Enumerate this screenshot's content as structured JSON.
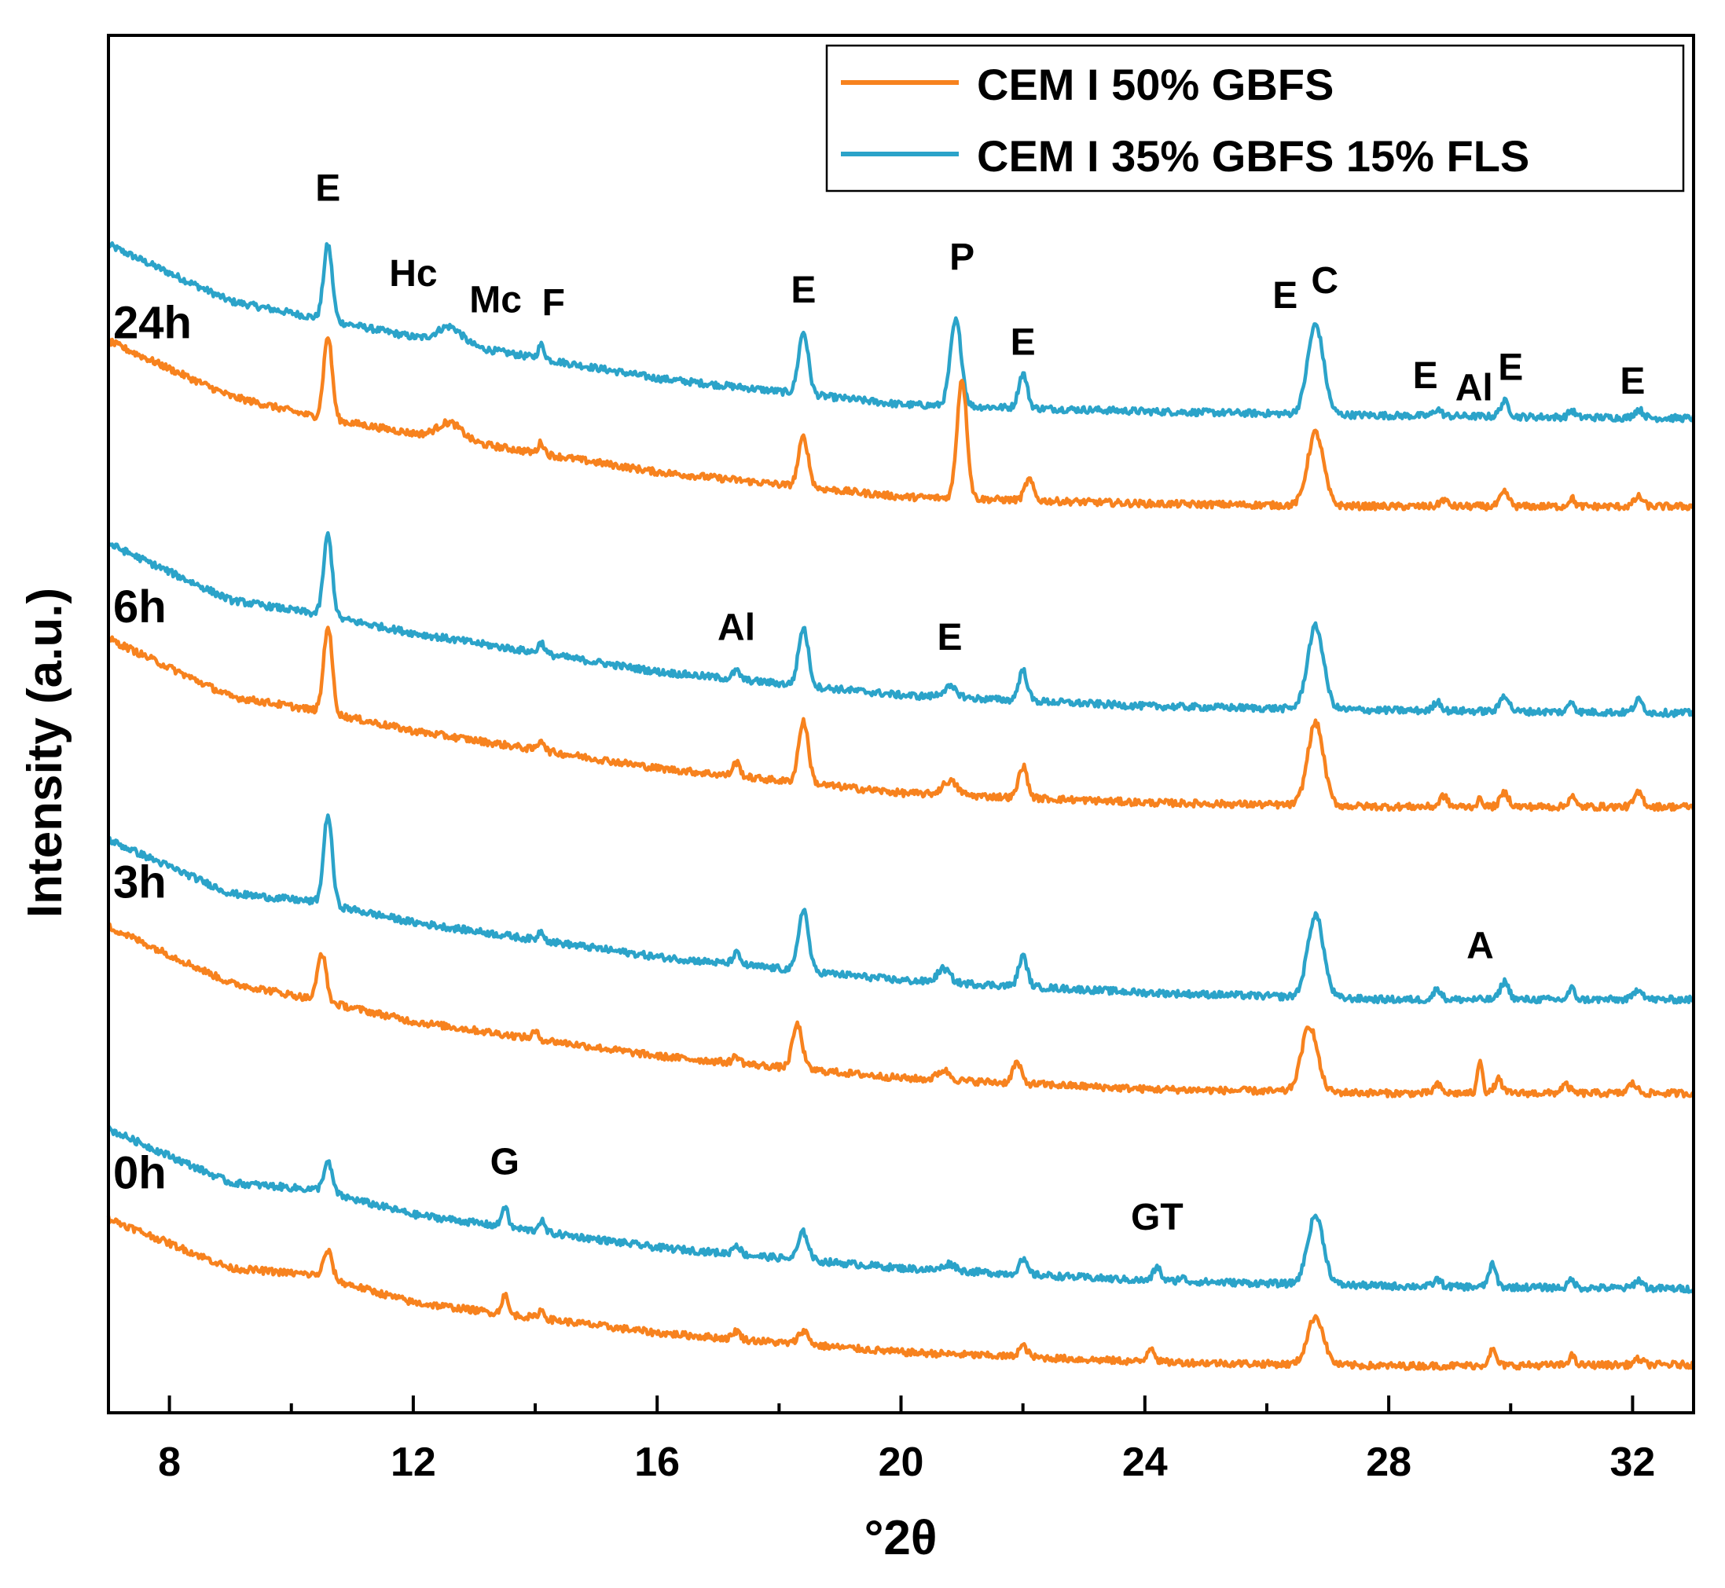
{
  "chart_data": {
    "type": "line",
    "title": "",
    "xlabel": "°2θ",
    "ylabel": "Intensity (a.u.)",
    "xlim": [
      7,
      33
    ],
    "ylim": [
      0,
      1
    ],
    "x_ticks": [
      8,
      12,
      16,
      20,
      24,
      28,
      32
    ],
    "x_tick_labels": [
      "8",
      "12",
      "16",
      "20",
      "24",
      "28",
      "32"
    ],
    "y_ticks_shown": false,
    "legend": {
      "placement": "top-right",
      "entries": [
        {
          "label": "CEM I 50% GBFS",
          "color": "#f7821e"
        },
        {
          "label": "CEM I 35% GBFS 15% FLS",
          "color": "#2ba3c9"
        }
      ]
    },
    "series_colors": {
      "orange": "#f7821e",
      "blue": "#2ba3c9"
    },
    "time_groups": [
      {
        "label": "24h",
        "anchor_y": 0.78
      },
      {
        "label": "6h",
        "anchor_y": 0.574
      },
      {
        "label": "3h",
        "anchor_y": 0.374
      },
      {
        "label": "0h",
        "anchor_y": 0.163
      }
    ],
    "series": [
      {
        "name": "CEM I 35% GBFS 15% FLS",
        "group": "24h",
        "baseline": [
          [
            7.0,
            0.848
          ],
          [
            9.0,
            0.807
          ],
          [
            10.4,
            0.795
          ],
          [
            12.0,
            0.781
          ],
          [
            16.0,
            0.751
          ],
          [
            20.0,
            0.732
          ],
          [
            24.0,
            0.727
          ],
          [
            28.0,
            0.724
          ],
          [
            33.0,
            0.722
          ]
        ],
        "peaks": [
          [
            10.6,
            0.055,
            0.07
          ],
          [
            12.6,
            0.012,
            0.2
          ],
          [
            14.1,
            0.01,
            0.05
          ],
          [
            18.4,
            0.045,
            0.08
          ],
          [
            20.9,
            0.062,
            0.09
          ],
          [
            22.0,
            0.025,
            0.07
          ],
          [
            26.8,
            0.065,
            0.13
          ],
          [
            28.8,
            0.005,
            0.06
          ],
          [
            29.9,
            0.011,
            0.07
          ],
          [
            31.0,
            0.005,
            0.05
          ],
          [
            32.1,
            0.006,
            0.07
          ]
        ]
      },
      {
        "name": "CEM I 50% GBFS",
        "group": "24h",
        "baseline": [
          [
            7.0,
            0.778
          ],
          [
            9.0,
            0.738
          ],
          [
            10.4,
            0.723
          ],
          [
            12.0,
            0.711
          ],
          [
            16.0,
            0.683
          ],
          [
            20.0,
            0.665
          ],
          [
            24.0,
            0.66
          ],
          [
            28.0,
            0.658
          ],
          [
            33.0,
            0.658
          ]
        ],
        "peaks": [
          [
            10.6,
            0.06,
            0.07
          ],
          [
            12.6,
            0.012,
            0.2
          ],
          [
            14.1,
            0.008,
            0.05
          ],
          [
            18.4,
            0.036,
            0.08
          ],
          [
            21.0,
            0.087,
            0.08
          ],
          [
            22.1,
            0.015,
            0.07
          ],
          [
            26.8,
            0.053,
            0.13
          ],
          [
            28.9,
            0.005,
            0.06
          ],
          [
            29.9,
            0.01,
            0.07
          ],
          [
            31.0,
            0.006,
            0.05
          ],
          [
            32.1,
            0.007,
            0.07
          ]
        ]
      },
      {
        "name": "CEM I 35% GBFS 15% FLS",
        "group": "6h",
        "baseline": [
          [
            7.0,
            0.631
          ],
          [
            9.0,
            0.59
          ],
          [
            10.4,
            0.58
          ],
          [
            12.0,
            0.566
          ],
          [
            16.0,
            0.538
          ],
          [
            20.0,
            0.521
          ],
          [
            24.0,
            0.513
          ],
          [
            28.0,
            0.51
          ],
          [
            33.0,
            0.508
          ]
        ],
        "peaks": [
          [
            10.6,
            0.059,
            0.07
          ],
          [
            14.1,
            0.008,
            0.05
          ],
          [
            17.3,
            0.006,
            0.06
          ],
          [
            18.4,
            0.042,
            0.08
          ],
          [
            20.8,
            0.007,
            0.12
          ],
          [
            22.0,
            0.022,
            0.07
          ],
          [
            26.8,
            0.06,
            0.13
          ],
          [
            28.8,
            0.007,
            0.06
          ],
          [
            29.9,
            0.012,
            0.07
          ],
          [
            31.0,
            0.008,
            0.05
          ],
          [
            32.1,
            0.009,
            0.07
          ]
        ]
      },
      {
        "name": "CEM I 50% GBFS",
        "group": "6h",
        "baseline": [
          [
            7.0,
            0.562
          ],
          [
            9.0,
            0.52
          ],
          [
            10.4,
            0.51
          ],
          [
            12.0,
            0.495
          ],
          [
            16.0,
            0.468
          ],
          [
            20.0,
            0.45
          ],
          [
            24.0,
            0.443
          ],
          [
            28.0,
            0.44
          ],
          [
            33.0,
            0.44
          ]
        ],
        "peaks": [
          [
            10.6,
            0.063,
            0.07
          ],
          [
            14.1,
            0.008,
            0.05
          ],
          [
            17.3,
            0.01,
            0.06
          ],
          [
            18.4,
            0.045,
            0.08
          ],
          [
            20.8,
            0.01,
            0.12
          ],
          [
            22.0,
            0.023,
            0.07
          ],
          [
            26.8,
            0.06,
            0.13
          ],
          [
            28.9,
            0.008,
            0.06
          ],
          [
            29.5,
            0.005,
            0.05
          ],
          [
            29.9,
            0.01,
            0.07
          ],
          [
            31.0,
            0.008,
            0.05
          ],
          [
            32.1,
            0.01,
            0.07
          ]
        ]
      },
      {
        "name": "CEM I 35% GBFS 15% FLS",
        "group": "3h",
        "baseline": [
          [
            7.0,
            0.416
          ],
          [
            9.0,
            0.377
          ],
          [
            10.4,
            0.371
          ],
          [
            12.0,
            0.356
          ],
          [
            16.0,
            0.331
          ],
          [
            20.0,
            0.314
          ],
          [
            24.0,
            0.305
          ],
          [
            28.0,
            0.3
          ],
          [
            33.0,
            0.3
          ]
        ],
        "peaks": [
          [
            10.6,
            0.065,
            0.07
          ],
          [
            14.1,
            0.007,
            0.05
          ],
          [
            17.3,
            0.008,
            0.06
          ],
          [
            18.4,
            0.045,
            0.08
          ],
          [
            20.7,
            0.01,
            0.1
          ],
          [
            22.0,
            0.022,
            0.07
          ],
          [
            26.8,
            0.06,
            0.13
          ],
          [
            28.8,
            0.008,
            0.06
          ],
          [
            29.9,
            0.013,
            0.07
          ],
          [
            31.0,
            0.008,
            0.05
          ],
          [
            32.1,
            0.008,
            0.07
          ]
        ]
      },
      {
        "name": "CEM I 50% GBFS",
        "group": "3h",
        "baseline": [
          [
            7.0,
            0.353
          ],
          [
            9.0,
            0.312
          ],
          [
            10.4,
            0.3
          ],
          [
            12.0,
            0.284
          ],
          [
            16.0,
            0.259
          ],
          [
            20.0,
            0.243
          ],
          [
            24.0,
            0.235
          ],
          [
            28.0,
            0.232
          ],
          [
            33.0,
            0.232
          ]
        ],
        "peaks": [
          [
            10.5,
            0.035,
            0.07
          ],
          [
            14.0,
            0.005,
            0.05
          ],
          [
            17.3,
            0.005,
            0.06
          ],
          [
            18.3,
            0.032,
            0.08
          ],
          [
            20.7,
            0.007,
            0.1
          ],
          [
            21.9,
            0.015,
            0.07
          ],
          [
            26.7,
            0.048,
            0.13
          ],
          [
            28.8,
            0.006,
            0.06
          ],
          [
            29.5,
            0.025,
            0.04
          ],
          [
            29.8,
            0.01,
            0.06
          ],
          [
            30.9,
            0.006,
            0.07
          ],
          [
            32.0,
            0.007,
            0.07
          ]
        ]
      },
      {
        "name": "CEM I 35% GBFS 15% FLS",
        "group": "0h",
        "baseline": [
          [
            7.0,
            0.206
          ],
          [
            9.0,
            0.167
          ],
          [
            10.4,
            0.162
          ],
          [
            12.0,
            0.144
          ],
          [
            16.0,
            0.12
          ],
          [
            20.0,
            0.105
          ],
          [
            24.0,
            0.096
          ],
          [
            28.0,
            0.092
          ],
          [
            33.0,
            0.09
          ]
        ],
        "peaks": [
          [
            10.6,
            0.022,
            0.07
          ],
          [
            13.5,
            0.015,
            0.05
          ],
          [
            14.1,
            0.008,
            0.05
          ],
          [
            17.3,
            0.007,
            0.06
          ],
          [
            18.4,
            0.02,
            0.08
          ],
          [
            20.8,
            0.005,
            0.1
          ],
          [
            22.0,
            0.01,
            0.07
          ],
          [
            24.2,
            0.01,
            0.06
          ],
          [
            24.6,
            0.003,
            0.05
          ],
          [
            26.8,
            0.05,
            0.13
          ],
          [
            28.8,
            0.005,
            0.06
          ],
          [
            29.7,
            0.016,
            0.06
          ],
          [
            31.0,
            0.006,
            0.05
          ],
          [
            32.1,
            0.006,
            0.07
          ]
        ]
      },
      {
        "name": "CEM I 50% GBFS",
        "group": "0h",
        "baseline": [
          [
            7.0,
            0.141
          ],
          [
            9.0,
            0.105
          ],
          [
            10.4,
            0.1
          ],
          [
            12.0,
            0.08
          ],
          [
            16.0,
            0.058
          ],
          [
            20.0,
            0.044
          ],
          [
            24.0,
            0.037
          ],
          [
            28.0,
            0.034
          ],
          [
            33.0,
            0.035
          ]
        ],
        "peaks": [
          [
            10.6,
            0.02,
            0.07
          ],
          [
            13.5,
            0.014,
            0.05
          ],
          [
            14.1,
            0.006,
            0.05
          ],
          [
            17.3,
            0.006,
            0.06
          ],
          [
            18.4,
            0.01,
            0.08
          ],
          [
            22.0,
            0.008,
            0.07
          ],
          [
            24.1,
            0.011,
            0.06
          ],
          [
            26.8,
            0.035,
            0.13
          ],
          [
            29.7,
            0.011,
            0.06
          ],
          [
            31.0,
            0.007,
            0.05
          ],
          [
            32.1,
            0.004,
            0.07
          ]
        ]
      }
    ],
    "annotations": [
      {
        "text": "E",
        "x": 10.6,
        "y": 0.88
      },
      {
        "text": "Hc",
        "x": 12.0,
        "y": 0.818
      },
      {
        "text": "Mc",
        "x": 13.35,
        "y": 0.799
      },
      {
        "text": "F",
        "x": 14.3,
        "y": 0.797
      },
      {
        "text": "E",
        "x": 18.4,
        "y": 0.806
      },
      {
        "text": "P",
        "x": 21.0,
        "y": 0.83
      },
      {
        "text": "E",
        "x": 22.0,
        "y": 0.768
      },
      {
        "text": "E",
        "x": 26.3,
        "y": 0.802
      },
      {
        "text": "C",
        "x": 26.95,
        "y": 0.813
      },
      {
        "text": "E",
        "x": 28.6,
        "y": 0.744
      },
      {
        "text": "Al",
        "x": 29.4,
        "y": 0.735
      },
      {
        "text": "E",
        "x": 30.0,
        "y": 0.75
      },
      {
        "text": "E",
        "x": 32.0,
        "y": 0.74
      },
      {
        "text": "Al",
        "x": 17.3,
        "y": 0.561
      },
      {
        "text": "E",
        "x": 20.8,
        "y": 0.554
      },
      {
        "text": "A",
        "x": 29.5,
        "y": 0.33
      },
      {
        "text": "G",
        "x": 13.5,
        "y": 0.173
      },
      {
        "text": "GT",
        "x": 24.2,
        "y": 0.133
      }
    ]
  }
}
